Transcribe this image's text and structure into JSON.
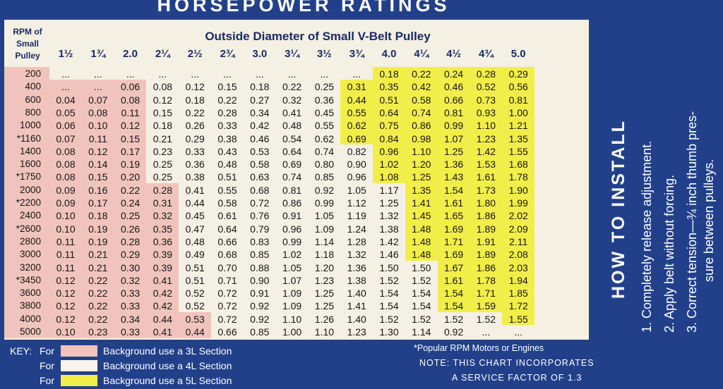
{
  "banner": "HORSEPOWER RATINGS",
  "header": {
    "rpm_label": [
      "RPM of",
      "Small",
      "Pulley"
    ],
    "title": "Outside Diameter of Small V-Belt Pulley",
    "columns": [
      "1½",
      "1¾",
      "2.0",
      "2¼",
      "2½",
      "2¾",
      "3.0",
      "3¼",
      "3½",
      "3¾",
      "4.0",
      "4¼",
      "4½",
      "4¾",
      "5.0"
    ]
  },
  "colors": {
    "section_3l": "#f0c4bd",
    "section_4l": "#f4f0e4",
    "section_5l": "#f1ee4a",
    "background": "#22408a"
  },
  "rows": [
    {
      "rpm": "200",
      "values": [
        "...",
        "...",
        "...",
        "...",
        "...",
        "...",
        "...",
        "...",
        "...",
        "...",
        "0.18",
        "0.22",
        "0.24",
        "0.28",
        "0.29"
      ]
    },
    {
      "rpm": "400",
      "values": [
        "...",
        "...",
        "0.06",
        "0.08",
        "0.12",
        "0.15",
        "0.18",
        "0.22",
        "0.25",
        "0.31",
        "0.35",
        "0.42",
        "0.46",
        "0.52",
        "0.56"
      ]
    },
    {
      "rpm": "600",
      "values": [
        "0.04",
        "0.07",
        "0.08",
        "0.12",
        "0.18",
        "0.22",
        "0.27",
        "0.32",
        "0.36",
        "0.44",
        "0.51",
        "0.58",
        "0.66",
        "0.73",
        "0.81"
      ]
    },
    {
      "rpm": "800",
      "values": [
        "0.05",
        "0.08",
        "0.11",
        "0.15",
        "0.22",
        "0.28",
        "0.34",
        "0.41",
        "0.45",
        "0.55",
        "0.64",
        "0.74",
        "0.81",
        "0.93",
        "1.00"
      ]
    },
    {
      "rpm": "1000",
      "values": [
        "0.06",
        "0.10",
        "0.12",
        "0.18",
        "0.26",
        "0.33",
        "0.42",
        "0.48",
        "0.55",
        "0.62",
        "0.75",
        "0.86",
        "0.99",
        "1.10",
        "1.21"
      ]
    },
    {
      "rpm": "*1160",
      "values": [
        "0.07",
        "0.11",
        "0.15",
        "0.21",
        "0.29",
        "0.38",
        "0.46",
        "0.54",
        "0.62",
        "0.69",
        "0.84",
        "0.98",
        "1.07",
        "1.23",
        "1.35"
      ]
    },
    {
      "rpm": "1400",
      "values": [
        "0.08",
        "0.12",
        "0.17",
        "0.23",
        "0.33",
        "0.43",
        "0.53",
        "0.64",
        "0.74",
        "0.82",
        "0.96",
        "1.10",
        "1.25",
        "1.42",
        "1.55"
      ]
    },
    {
      "rpm": "1600",
      "values": [
        "0.08",
        "0.14",
        "0.19",
        "0.25",
        "0.36",
        "0.48",
        "0.58",
        "0.69",
        "0.80",
        "0.90",
        "1.02",
        "1.20",
        "1.36",
        "1.53",
        "1.68"
      ]
    },
    {
      "rpm": "*1750",
      "values": [
        "0.08",
        "0.15",
        "0.20",
        "0.25",
        "0.38",
        "0.51",
        "0.63",
        "0.74",
        "0.85",
        "0.96",
        "1.08",
        "1.25",
        "1.43",
        "1.61",
        "1.78"
      ]
    },
    {
      "rpm": "2000",
      "values": [
        "0.09",
        "0.16",
        "0.22",
        "0.28",
        "0.41",
        "0.55",
        "0.68",
        "0.81",
        "0.92",
        "1.05",
        "1.17",
        "1.35",
        "1.54",
        "1.73",
        "1.90"
      ]
    },
    {
      "rpm": "*2200",
      "values": [
        "0.09",
        "0.17",
        "0.24",
        "0.31",
        "0.44",
        "0.58",
        "0.72",
        "0.86",
        "0.99",
        "1.12",
        "1.25",
        "1.41",
        "1.61",
        "1.80",
        "1.99"
      ]
    },
    {
      "rpm": "2400",
      "values": [
        "0.10",
        "0.18",
        "0.25",
        "0.32",
        "0.45",
        "0.61",
        "0.76",
        "0.91",
        "1.05",
        "1.19",
        "1.32",
        "1.45",
        "1.65",
        "1.86",
        "2.02"
      ]
    },
    {
      "rpm": "*2600",
      "values": [
        "0.10",
        "0.19",
        "0.26",
        "0.35",
        "0.47",
        "0.64",
        "0.79",
        "0.96",
        "1.09",
        "1.24",
        "1.38",
        "1.48",
        "1.69",
        "1.89",
        "2.09"
      ]
    },
    {
      "rpm": "2800",
      "values": [
        "0.11",
        "0.19",
        "0.28",
        "0.36",
        "0.48",
        "0.66",
        "0.83",
        "0.99",
        "1.14",
        "1.28",
        "1.42",
        "1.48",
        "1.71",
        "1.91",
        "2.11"
      ]
    },
    {
      "rpm": "3000",
      "values": [
        "0.11",
        "0.21",
        "0.29",
        "0.39",
        "0.49",
        "0.68",
        "0.85",
        "1.02",
        "1.18",
        "1.32",
        "1.46",
        "1.48",
        "1.69",
        "1.89",
        "2.08"
      ]
    },
    {
      "rpm": "3200",
      "values": [
        "0.11",
        "0.21",
        "0.30",
        "0.39",
        "0.51",
        "0.70",
        "0.88",
        "1.05",
        "1.20",
        "1.36",
        "1.50",
        "1.50",
        "1.67",
        "1.86",
        "2.03"
      ]
    },
    {
      "rpm": "*3450",
      "values": [
        "0.12",
        "0.22",
        "0.32",
        "0.41",
        "0.51",
        "0.71",
        "0.90",
        "1.07",
        "1.23",
        "1.38",
        "1.52",
        "1.52",
        "1.61",
        "1.78",
        "1.94"
      ]
    },
    {
      "rpm": "3600",
      "values": [
        "0.12",
        "0.22",
        "0.33",
        "0.42",
        "0.52",
        "0.72",
        "0.91",
        "1.09",
        "1.25",
        "1.40",
        "1.54",
        "1.54",
        "1.54",
        "1.71",
        "1.85"
      ]
    },
    {
      "rpm": "3800",
      "values": [
        "0.12",
        "0.22",
        "0.33",
        "0.42",
        "0.52",
        "0.72",
        "0.92",
        "1.09",
        "1.25",
        "1.41",
        "1.54",
        "1.54",
        "1.54",
        "1.59",
        "1.72"
      ]
    },
    {
      "rpm": "4000",
      "values": [
        "0.12",
        "0.22",
        "0.34",
        "0.44",
        "0.53",
        "0.72",
        "0.92",
        "1.10",
        "1.26",
        "1.40",
        "1.52",
        "1.52",
        "1.52",
        "1.52",
        "1.55"
      ]
    },
    {
      "rpm": "5000",
      "values": [
        "0.10",
        "0.23",
        "0.33",
        "0.41",
        "0.44",
        "0.66",
        "0.85",
        "1.00",
        "1.10",
        "1.23",
        "1.30",
        "1.14",
        "0.92",
        "...",
        "..."
      ]
    }
  ],
  "key": {
    "title": "KEY:",
    "items": [
      {
        "prefix": "For",
        "label": "Background use a 3L Section"
      },
      {
        "prefix": "For",
        "label": "Background use a 4L Section"
      },
      {
        "prefix": "For",
        "label": "Background use a 5L Section"
      }
    ]
  },
  "footnote": "*Popular RPM Motors or Engines",
  "note_line1": "NOTE: THIS CHART INCORPORATES",
  "note_line2": "A SERVICE FACTOR OF 1.3",
  "install": {
    "title": "HOW TO INSTALL",
    "steps": [
      "1. Completely release adjustment.",
      "2. Apply belt without forcing.",
      "3. Correct tension—¾ inch thumb pres-",
      "sure between pulleys."
    ]
  }
}
